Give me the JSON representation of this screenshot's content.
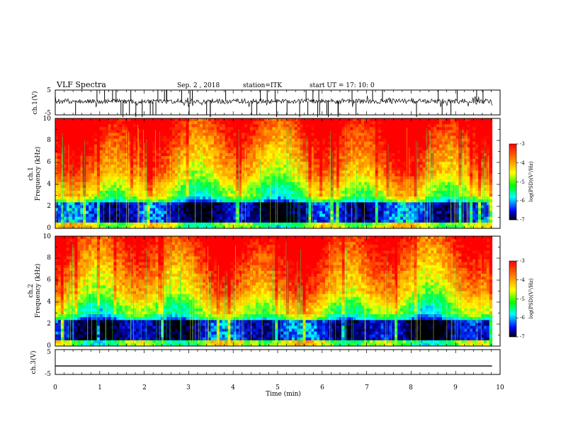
{
  "header": {
    "title": "VLF Spectra",
    "date": "Sep. 2 , 2018",
    "station": "station=ITK",
    "start": "start UT = 17: 10: 0"
  },
  "chart_data": [
    {
      "type": "line",
      "name": "ch1-waveform",
      "ylabel": "ch.1(V)",
      "yticks": [
        "5",
        "-5"
      ],
      "ylim": [
        -5,
        5
      ],
      "xlim": [
        0,
        10
      ],
      "data_extent_min": 9.82
    },
    {
      "type": "heatmap",
      "name": "ch1-spectrogram",
      "ylabel_line1": "ch.1",
      "ylabel_line2": "Frequency (kHz)",
      "yticks": [
        "0",
        "2",
        "4",
        "6",
        "8",
        "10"
      ],
      "ylim": [
        0,
        10
      ],
      "xlim": [
        0,
        10
      ],
      "colorbar": {
        "label": "log(PSD)(V²/Hz)",
        "ticks": [
          "-3",
          "-4",
          "-5",
          "-6",
          "-7"
        ],
        "range": [
          -7,
          -3
        ]
      }
    },
    {
      "type": "heatmap",
      "name": "ch2-spectrogram",
      "ylabel_line1": "ch.2",
      "ylabel_line2": "Frequency (kHz)",
      "yticks": [
        "0",
        "2",
        "4",
        "6",
        "8",
        "10"
      ],
      "ylim": [
        0,
        10
      ],
      "xlim": [
        0,
        10
      ],
      "colorbar": {
        "label": "log(PSD)(V²/Hz)",
        "ticks": [
          "-3",
          "-4",
          "-5",
          "-6",
          "-7"
        ],
        "range": [
          -7,
          -3
        ]
      }
    },
    {
      "type": "line",
      "name": "ch3-waveform",
      "ylabel": "ch.3(V)",
      "yticks": [
        "5",
        "-5"
      ],
      "ylim": [
        -5,
        5
      ],
      "xlim": [
        0,
        10
      ],
      "value": -1.6
    }
  ],
  "xaxis": {
    "label": "Time (min)",
    "ticks": [
      "0",
      "1",
      "2",
      "3",
      "4",
      "5",
      "6",
      "7",
      "8",
      "9",
      "10"
    ]
  },
  "colors": {
    "scale": [
      "#000000",
      "#0000ff",
      "#00ffff",
      "#00ff00",
      "#ffff00",
      "#ff8000",
      "#ff0000"
    ]
  }
}
